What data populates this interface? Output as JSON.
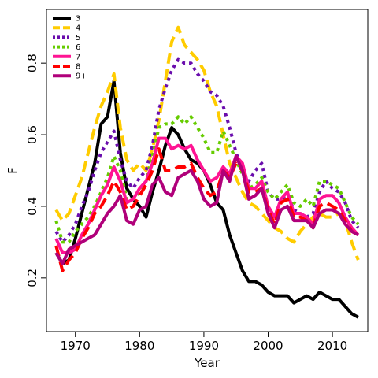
{
  "chart_data": {
    "type": "line",
    "title": "",
    "xlabel": "Year",
    "ylabel": "F",
    "xlim": [
      1965.5,
      2015.5
    ],
    "ylim": [
      0.05,
      0.95
    ],
    "xticks": [
      1970,
      1980,
      1990,
      2000,
      2010
    ],
    "yticks": [
      0.2,
      0.4,
      0.6,
      0.8
    ],
    "xtick_labels": [
      "1970",
      "1980",
      "1990",
      "2000",
      "2010"
    ],
    "ytick_labels": [
      "0.2",
      "0.4",
      "0.6",
      "0.8"
    ],
    "grid": false,
    "legend_position": "top-left",
    "x": [
      1967,
      1968,
      1969,
      1970,
      1971,
      1972,
      1973,
      1974,
      1975,
      1976,
      1977,
      1978,
      1979,
      1980,
      1981,
      1982,
      1983,
      1984,
      1985,
      1986,
      1987,
      1988,
      1989,
      1990,
      1991,
      1992,
      1993,
      1994,
      1995,
      1996,
      1997,
      1998,
      1999,
      2000,
      2001,
      2002,
      2003,
      2004,
      2005,
      2006,
      2007,
      2008,
      2009,
      2010,
      2011,
      2012,
      2013,
      2014
    ],
    "series": [
      {
        "name": "3",
        "color": "#000000",
        "dash": "solid",
        "values": [
          0.27,
          0.24,
          0.25,
          0.31,
          0.38,
          0.45,
          0.52,
          0.63,
          0.65,
          0.75,
          0.55,
          0.45,
          0.42,
          0.4,
          0.37,
          0.44,
          0.5,
          0.57,
          0.62,
          0.6,
          0.56,
          0.53,
          0.52,
          0.5,
          0.46,
          0.41,
          0.39,
          0.32,
          0.27,
          0.22,
          0.19,
          0.19,
          0.18,
          0.16,
          0.15,
          0.15,
          0.15,
          0.13,
          0.14,
          0.15,
          0.14,
          0.16,
          0.15,
          0.14,
          0.14,
          0.12,
          0.1,
          0.09
        ]
      },
      {
        "name": "4",
        "color": "#FFCC00",
        "dash": "dashed",
        "values": [
          0.39,
          0.36,
          0.38,
          0.43,
          0.48,
          0.55,
          0.62,
          0.68,
          0.72,
          0.77,
          0.62,
          0.53,
          0.5,
          0.52,
          0.5,
          0.56,
          0.64,
          0.75,
          0.86,
          0.9,
          0.85,
          0.83,
          0.81,
          0.78,
          0.72,
          0.68,
          0.6,
          0.52,
          0.48,
          0.44,
          0.41,
          0.4,
          0.38,
          0.36,
          0.34,
          0.33,
          0.31,
          0.3,
          0.33,
          0.35,
          0.37,
          0.38,
          0.37,
          0.37,
          0.38,
          0.36,
          0.3,
          0.25
        ]
      },
      {
        "name": "5",
        "color": "#6A0DAD",
        "dash": "dotted",
        "values": [
          0.33,
          0.3,
          0.32,
          0.35,
          0.4,
          0.44,
          0.5,
          0.55,
          0.58,
          0.61,
          0.53,
          0.47,
          0.45,
          0.48,
          0.5,
          0.57,
          0.67,
          0.73,
          0.78,
          0.81,
          0.8,
          0.8,
          0.77,
          0.75,
          0.72,
          0.71,
          0.68,
          0.62,
          0.55,
          0.5,
          0.47,
          0.5,
          0.52,
          0.44,
          0.42,
          0.42,
          0.43,
          0.39,
          0.38,
          0.37,
          0.38,
          0.44,
          0.47,
          0.45,
          0.44,
          0.41,
          0.36,
          0.34
        ]
      },
      {
        "name": "6",
        "color": "#66CC00",
        "dash": "dotted",
        "values": [
          0.36,
          0.3,
          0.3,
          0.33,
          0.35,
          0.37,
          0.4,
          0.44,
          0.48,
          0.54,
          0.5,
          0.42,
          0.42,
          0.44,
          0.47,
          0.54,
          0.62,
          0.63,
          0.63,
          0.65,
          0.63,
          0.65,
          0.62,
          0.59,
          0.55,
          0.55,
          0.61,
          0.57,
          0.53,
          0.49,
          0.45,
          0.46,
          0.48,
          0.44,
          0.42,
          0.44,
          0.46,
          0.41,
          0.4,
          0.42,
          0.4,
          0.47,
          0.47,
          0.46,
          0.45,
          0.41,
          0.37,
          0.35
        ]
      },
      {
        "name": "7",
        "color": "#FF1493",
        "dash": "solid",
        "values": [
          0.31,
          0.27,
          0.27,
          0.28,
          0.32,
          0.35,
          0.39,
          0.43,
          0.46,
          0.51,
          0.47,
          0.41,
          0.42,
          0.45,
          0.47,
          0.52,
          0.59,
          0.59,
          0.56,
          0.57,
          0.56,
          0.57,
          0.53,
          0.5,
          0.47,
          0.48,
          0.51,
          0.49,
          0.54,
          0.52,
          0.45,
          0.45,
          0.47,
          0.4,
          0.37,
          0.42,
          0.44,
          0.38,
          0.38,
          0.37,
          0.35,
          0.42,
          0.43,
          0.43,
          0.41,
          0.37,
          0.34,
          0.32
        ]
      },
      {
        "name": "8",
        "color": "#FF0000",
        "dash": "dashed",
        "values": [
          0.29,
          0.22,
          0.25,
          0.27,
          0.31,
          0.34,
          0.38,
          0.4,
          0.43,
          0.47,
          0.44,
          0.39,
          0.4,
          0.43,
          0.46,
          0.5,
          0.56,
          0.5,
          0.5,
          0.51,
          0.51,
          0.52,
          0.48,
          0.45,
          0.43,
          0.44,
          0.5,
          0.48,
          0.52,
          0.5,
          0.44,
          0.44,
          0.45,
          0.39,
          0.35,
          0.41,
          0.42,
          0.37,
          0.37,
          0.36,
          0.34,
          0.4,
          0.41,
          0.4,
          0.39,
          0.36,
          0.33,
          0.32
        ]
      },
      {
        "name": "9+",
        "color": "#B0007A",
        "dash": "solid",
        "values": [
          0.27,
          0.24,
          0.28,
          0.29,
          0.3,
          0.31,
          0.32,
          0.35,
          0.38,
          0.4,
          0.43,
          0.36,
          0.35,
          0.39,
          0.4,
          0.46,
          0.48,
          0.44,
          0.43,
          0.48,
          0.49,
          0.5,
          0.47,
          0.42,
          0.4,
          0.41,
          0.5,
          0.47,
          0.54,
          0.5,
          0.42,
          0.43,
          0.45,
          0.38,
          0.34,
          0.39,
          0.4,
          0.36,
          0.36,
          0.36,
          0.34,
          0.38,
          0.39,
          0.39,
          0.38,
          0.35,
          0.33,
          0.32
        ]
      }
    ]
  }
}
